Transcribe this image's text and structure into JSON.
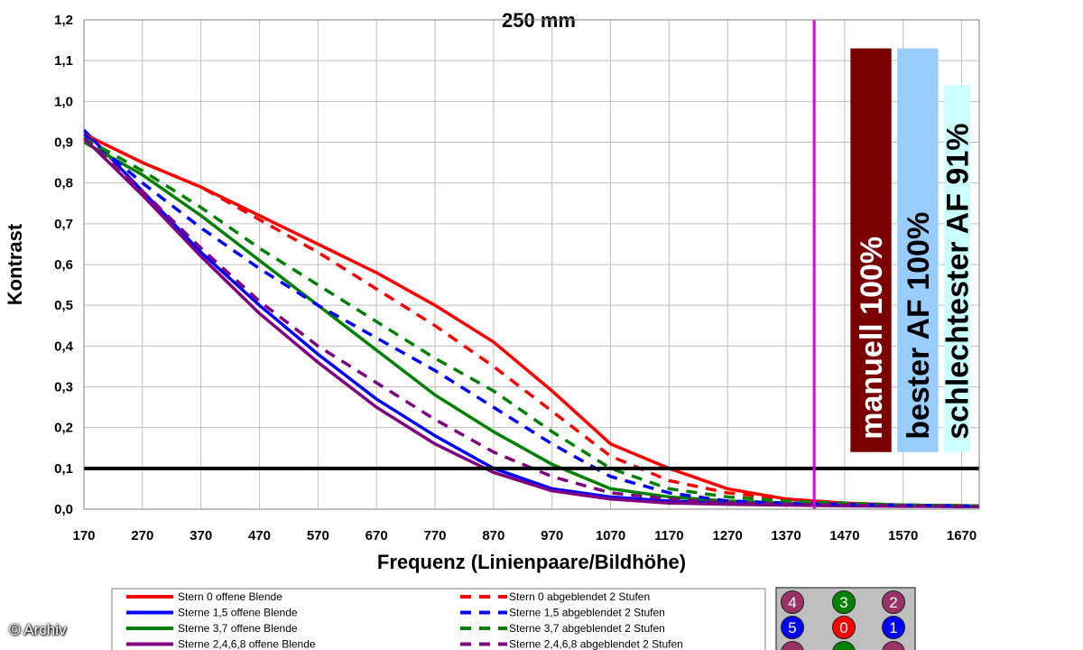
{
  "copyright": "© Archiv",
  "chart_data": {
    "type": "line",
    "subtitle": "250 mm",
    "xlabel": "Frequenz (Linienpaare/Bildhöhe)",
    "ylabel": "Kontrast",
    "xlim": [
      170,
      1700
    ],
    "ylim": [
      0,
      1.2
    ],
    "xticks": [
      170,
      270,
      370,
      470,
      570,
      670,
      770,
      870,
      970,
      1070,
      1170,
      1270,
      1370,
      1470,
      1570,
      1670
    ],
    "xtick_labels": [
      "170",
      "270",
      "370",
      "470",
      "570",
      "670",
      "770",
      "870",
      "970",
      "1070",
      "1170",
      "1270",
      "1370",
      "1470",
      "1570",
      "1670"
    ],
    "yticks": [
      0,
      0.1,
      0.2,
      0.3,
      0.4,
      0.5,
      0.6,
      0.7,
      0.8,
      0.9,
      1.0,
      1.1,
      1.2
    ],
    "ytick_labels": [
      "0,0",
      "0,1",
      "0,2",
      "0,3",
      "0,4",
      "0,5",
      "0,6",
      "0,7",
      "0,8",
      "0,9",
      "1,0",
      "1,1",
      "1,2"
    ],
    "grid": true,
    "threshold": {
      "y": 0.1,
      "color": "#000000"
    },
    "vline": {
      "x": 1418,
      "color": "#dd00dd"
    },
    "bars": [
      {
        "label": "manuell 100%",
        "x_start": 1480,
        "x_end": 1550,
        "value": 1.13,
        "color": "#7a0000",
        "text_color": "#ffffff"
      },
      {
        "label": "bester AF 100%",
        "x_start": 1560,
        "x_end": 1630,
        "value": 1.13,
        "color": "#99ccff",
        "text_color": "#000000"
      },
      {
        "label": "schlechtester AF 91%",
        "x_start": 1640,
        "x_end": 1710,
        "value": 1.04,
        "color": "#ccffff",
        "text_color": "#000000"
      }
    ],
    "series": [
      {
        "name": "Stern 0 offene Blende",
        "color": "#ff0000",
        "dash": false,
        "x": [
          170,
          270,
          370,
          470,
          570,
          670,
          770,
          870,
          970,
          1070,
          1170,
          1270,
          1370,
          1470,
          1570,
          1700
        ],
        "y": [
          0.92,
          0.85,
          0.79,
          0.72,
          0.65,
          0.58,
          0.5,
          0.41,
          0.29,
          0.16,
          0.1,
          0.05,
          0.025,
          0.015,
          0.01,
          0.008
        ]
      },
      {
        "name": "Sterne 1,5 offene Blende",
        "color": "#0000ff",
        "dash": false,
        "x": [
          170,
          270,
          370,
          470,
          570,
          670,
          770,
          870,
          970,
          1070,
          1170,
          1270,
          1370,
          1470,
          1570,
          1700
        ],
        "y": [
          0.93,
          0.78,
          0.63,
          0.5,
          0.38,
          0.27,
          0.18,
          0.1,
          0.05,
          0.03,
          0.02,
          0.015,
          0.012,
          0.01,
          0.008,
          0.006
        ]
      },
      {
        "name": "Sterne 3,7 offene Blende",
        "color": "#008000",
        "dash": false,
        "x": [
          170,
          270,
          370,
          470,
          570,
          670,
          770,
          870,
          970,
          1070,
          1170,
          1270,
          1370,
          1470,
          1570,
          1700
        ],
        "y": [
          0.9,
          0.82,
          0.72,
          0.61,
          0.5,
          0.39,
          0.28,
          0.19,
          0.11,
          0.05,
          0.03,
          0.02,
          0.015,
          0.012,
          0.01,
          0.008
        ]
      },
      {
        "name": "Sterne 2,4,6,8 offene Blende",
        "color": "#800080",
        "dash": false,
        "x": [
          170,
          270,
          370,
          470,
          570,
          670,
          770,
          870,
          970,
          1070,
          1170,
          1270,
          1370,
          1470,
          1570,
          1700
        ],
        "y": [
          0.91,
          0.77,
          0.62,
          0.48,
          0.36,
          0.25,
          0.16,
          0.09,
          0.045,
          0.025,
          0.015,
          0.012,
          0.01,
          0.008,
          0.007,
          0.006
        ]
      },
      {
        "name": "Stern 0 abgeblendet 2 Stufen",
        "color": "#ff0000",
        "dash": true,
        "x": [
          170,
          270,
          370,
          470,
          570,
          670,
          770,
          870,
          970,
          1070,
          1170,
          1270,
          1370,
          1470,
          1570,
          1700
        ],
        "y": [
          0.92,
          0.85,
          0.79,
          0.71,
          0.63,
          0.54,
          0.45,
          0.35,
          0.24,
          0.13,
          0.07,
          0.04,
          0.025,
          0.015,
          0.01,
          0.008
        ]
      },
      {
        "name": "Sterne 1,5 abgeblendet 2 Stufen",
        "color": "#0000ff",
        "dash": true,
        "x": [
          170,
          270,
          370,
          470,
          570,
          670,
          770,
          870,
          970,
          1070,
          1170,
          1270,
          1370,
          1470,
          1570,
          1700
        ],
        "y": [
          0.92,
          0.8,
          0.69,
          0.59,
          0.5,
          0.42,
          0.34,
          0.25,
          0.16,
          0.08,
          0.04,
          0.02,
          0.015,
          0.012,
          0.01,
          0.008
        ]
      },
      {
        "name": "Sterne 3,7 abgeblendet 2 Stufen",
        "color": "#008000",
        "dash": true,
        "x": [
          170,
          270,
          370,
          470,
          570,
          670,
          770,
          870,
          970,
          1070,
          1170,
          1270,
          1370,
          1470,
          1570,
          1700
        ],
        "y": [
          0.91,
          0.83,
          0.74,
          0.64,
          0.55,
          0.46,
          0.37,
          0.29,
          0.19,
          0.1,
          0.05,
          0.03,
          0.02,
          0.015,
          0.01,
          0.008
        ]
      },
      {
        "name": "Sterne 2,4,6,8 abgeblendet 2 Stufen",
        "color": "#800080",
        "dash": true,
        "x": [
          170,
          270,
          370,
          470,
          570,
          670,
          770,
          870,
          970,
          1070,
          1170,
          1270,
          1370,
          1470,
          1570,
          1700
        ],
        "y": [
          0.91,
          0.78,
          0.64,
          0.51,
          0.4,
          0.31,
          0.22,
          0.14,
          0.08,
          0.04,
          0.025,
          0.015,
          0.012,
          0.01,
          0.008,
          0.006
        ]
      }
    ],
    "legend": {
      "position": "bottom",
      "entries": [
        "Stern 0 offene Blende",
        "Sterne 1,5 offene Blende",
        "Sterne 3,7 offene Blende",
        "Sterne 2,4,6,8 offene Blende",
        "Stern 0 abgeblendet 2 Stufen",
        "Sterne 1,5 abgeblendet 2 Stufen",
        "Sterne 3,7 abgeblendet 2 Stufen",
        "Sterne 2,4,6,8 abgeblendet 2 Stufen"
      ]
    },
    "star_markers": [
      {
        "label": "4",
        "color": "#993366"
      },
      {
        "label": "3",
        "color": "#008000"
      },
      {
        "label": "2",
        "color": "#993366"
      },
      {
        "label": "5",
        "color": "#0000ff"
      },
      {
        "label": "0",
        "color": "#ff0000"
      },
      {
        "label": "1",
        "color": "#0000ff"
      },
      {
        "label": "",
        "color": "#993366"
      },
      {
        "label": "",
        "color": "#008000"
      },
      {
        "label": "",
        "color": "#993366"
      }
    ]
  }
}
